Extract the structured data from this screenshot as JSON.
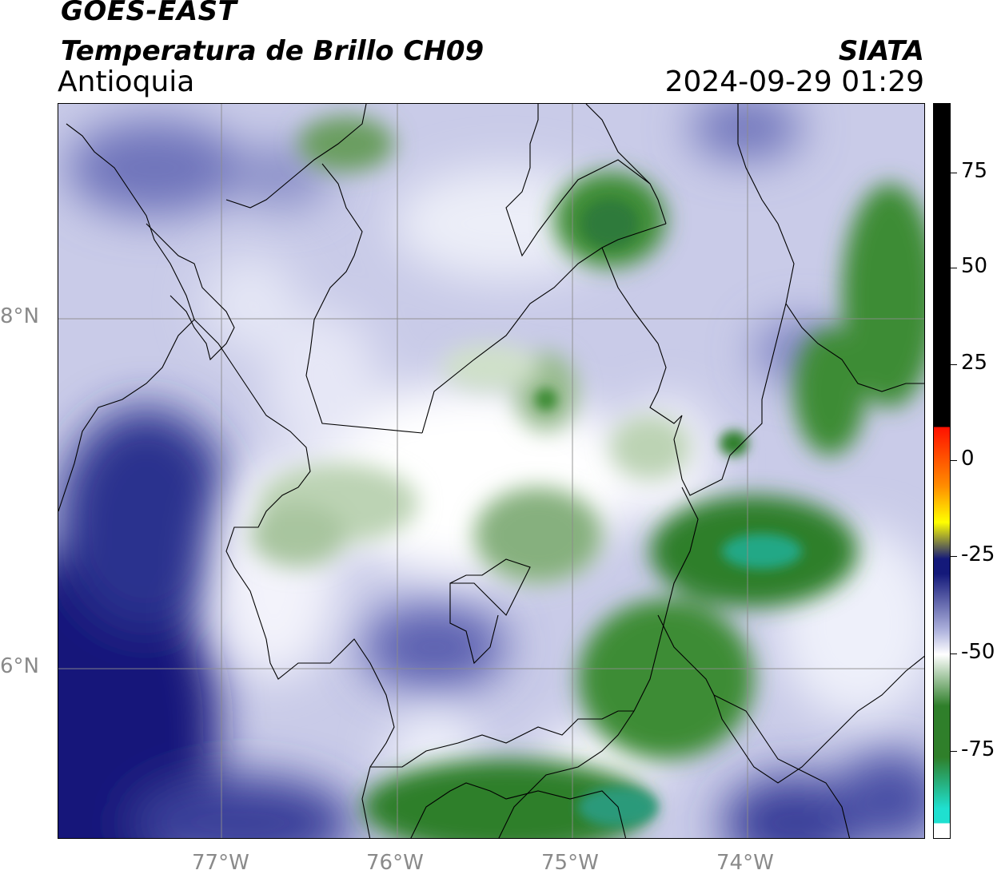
{
  "header": {
    "satellite": "GOES-EAST",
    "product": "Temperatura de Brillo CH09",
    "region": "Antioquia",
    "organization": "SIATA",
    "datetime": "2024-09-29 01:29"
  },
  "map": {
    "lat_labels": [
      "8°N",
      "6°N"
    ],
    "lon_labels": [
      "77°W",
      "76°W",
      "75°W",
      "74°W"
    ],
    "gridlines": true
  },
  "colorbar": {
    "tick_labels": [
      "75",
      "50",
      "25",
      "0",
      "-25",
      "-50",
      "-75"
    ],
    "colors": {
      "cold": "#1fe0d0",
      "green": "#2f7f2a",
      "white": "#ffffff",
      "lavender": "#b4b8e0",
      "navy": "#14197a",
      "yellow": "#ffff00",
      "orange": "#ff8c00",
      "red": "#ff1000",
      "black": "#000000"
    }
  }
}
